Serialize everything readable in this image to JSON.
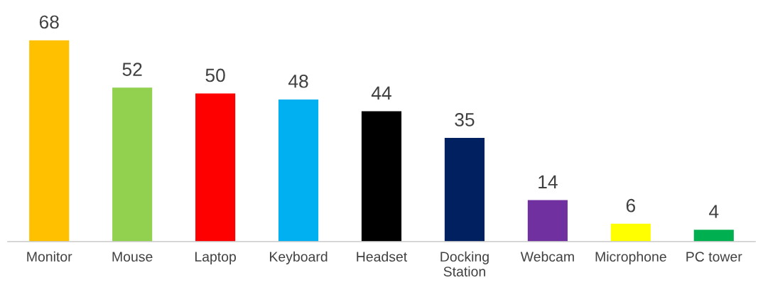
{
  "chart_data": {
    "type": "bar",
    "categories": [
      "Monitor",
      "Mouse",
      "Laptop",
      "Keyboard",
      "Headset",
      "Docking\nStation",
      "Webcam",
      "Microphone",
      "PC tower"
    ],
    "values": [
      68,
      52,
      50,
      48,
      44,
      35,
      14,
      6,
      4
    ],
    "colors": [
      "#ffc000",
      "#92d050",
      "#ff0000",
      "#00b0f0",
      "#000000",
      "#002060",
      "#7030a0",
      "#ffff00",
      "#00b050"
    ],
    "data_labels": true,
    "grid": false,
    "legend": false
  }
}
